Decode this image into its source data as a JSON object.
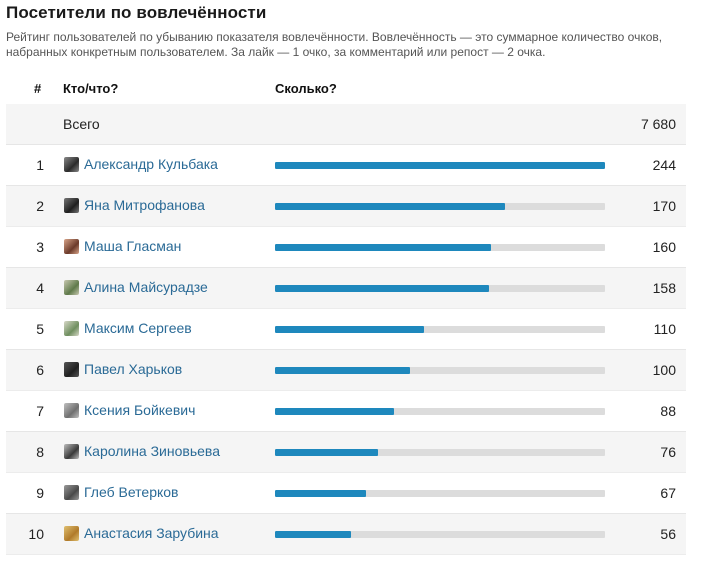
{
  "title": "Посетители по вовлечённости",
  "description": "Рейтинг пользователей по убыванию показателя вовлечённости. Вовлечённость — это суммарное количество очков, набранных конкретным пользователем. За лайк — 1 очко, за комментарий или репост — 2 очка.",
  "columns": {
    "num": "#",
    "who": "Кто/что?",
    "how": "Сколько?"
  },
  "total": {
    "label": "Всего",
    "value": "7 680"
  },
  "max_value": 244,
  "accent_color": "#1e88bd",
  "rows": [
    {
      "rank": "1",
      "name": "Александр Кульбака",
      "value": 244,
      "display": "244",
      "avatar_colors": [
        "#2b2b2b",
        "#8a8a8a"
      ]
    },
    {
      "rank": "2",
      "name": "Яна Митрофанова",
      "value": 170,
      "display": "170",
      "avatar_colors": [
        "#1f1f1f",
        "#777777"
      ]
    },
    {
      "rank": "3",
      "name": "Маша Гласман",
      "value": 160,
      "display": "160",
      "avatar_colors": [
        "#6b3a2a",
        "#d9a58a"
      ]
    },
    {
      "rank": "4",
      "name": "Алина Майсурадзе",
      "value": 158,
      "display": "158",
      "avatar_colors": [
        "#5f7a4a",
        "#c8c8b0"
      ]
    },
    {
      "rank": "5",
      "name": "Максим Сергеев",
      "value": 110,
      "display": "110",
      "avatar_colors": [
        "#6f8f5f",
        "#d8d8c8"
      ]
    },
    {
      "rank": "6",
      "name": "Павел Харьков",
      "value": 100,
      "display": "100",
      "avatar_colors": [
        "#202020",
        "#555555"
      ]
    },
    {
      "rank": "7",
      "name": "Ксения Бойкевич",
      "value": 88,
      "display": "88",
      "avatar_colors": [
        "#707070",
        "#c0c0c0"
      ]
    },
    {
      "rank": "8",
      "name": "Каролина Зиновьева",
      "value": 76,
      "display": "76",
      "avatar_colors": [
        "#3a3a3a",
        "#bdbdbd"
      ]
    },
    {
      "rank": "9",
      "name": "Глеб Ветерков",
      "value": 67,
      "display": "67",
      "avatar_colors": [
        "#4a4a4a",
        "#9a9a9a"
      ]
    },
    {
      "rank": "10",
      "name": "Анастасия Зарубина",
      "value": 56,
      "display": "56",
      "avatar_colors": [
        "#b07a2a",
        "#e0c070"
      ]
    }
  ]
}
